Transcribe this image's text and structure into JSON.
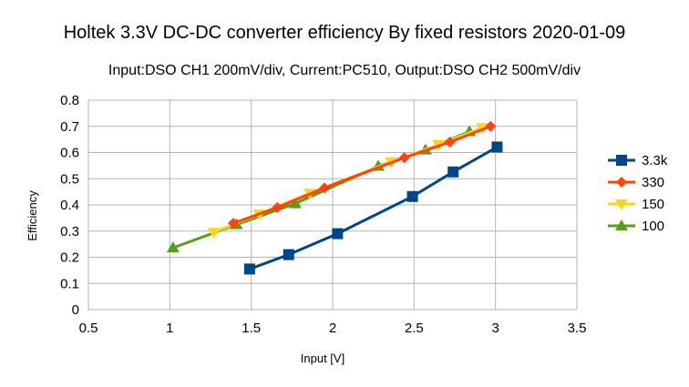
{
  "chart_data": {
    "type": "line",
    "title": "Holtek 3.3V DC-DC converter efficiency By fixed resistors 2020-01-09",
    "subtitle": "Input:DSO CH1 200mV/div, Current:PC510, Output:DSO CH2 500mV/div",
    "xlabel": "Input [V]",
    "ylabel": "Efficiency",
    "xlim": [
      0.5,
      3.5
    ],
    "ylim": [
      0,
      0.8
    ],
    "xticks": [
      0.5,
      1,
      1.5,
      2,
      2.5,
      3,
      3.5
    ],
    "yticks": [
      0,
      0.1,
      0.2,
      0.3,
      0.4,
      0.5,
      0.6,
      0.7,
      0.8
    ],
    "xtick_labels": [
      "0.5",
      "1",
      "1.5",
      "2",
      "2.5",
      "3",
      "3.5"
    ],
    "ytick_labels": [
      "0",
      "0.1",
      "0.2",
      "0.3",
      "0.4",
      "0.5",
      "0.6",
      "0.7",
      "0.8"
    ],
    "grid": true,
    "legend_position": "right",
    "series": [
      {
        "name": "3.3k",
        "color": "#004586",
        "marker": "square",
        "x": [
          1.49,
          1.73,
          2.03,
          2.49,
          2.74,
          3.01
        ],
        "y": [
          0.155,
          0.21,
          0.29,
          0.432,
          0.526,
          0.621
        ]
      },
      {
        "name": "330",
        "color": "#ff420e",
        "marker": "diamond",
        "x": [
          1.39,
          1.66,
          1.95,
          2.44,
          2.72,
          2.97
        ],
        "y": [
          0.33,
          0.39,
          0.465,
          0.58,
          0.64,
          0.7
        ]
      },
      {
        "name": "150",
        "color": "#ffd320",
        "marker": "triangle-down",
        "x": [
          1.27,
          1.55,
          1.86,
          2.36,
          2.65,
          2.92
        ],
        "y": [
          0.295,
          0.365,
          0.445,
          0.565,
          0.63,
          0.695
        ]
      },
      {
        "name": "100",
        "color": "#579d1c",
        "marker": "triangle-up",
        "x": [
          1.02,
          1.41,
          1.77,
          2.28,
          2.57,
          2.84
        ],
        "y": [
          0.236,
          0.325,
          0.405,
          0.548,
          0.61,
          0.68
        ]
      }
    ]
  }
}
